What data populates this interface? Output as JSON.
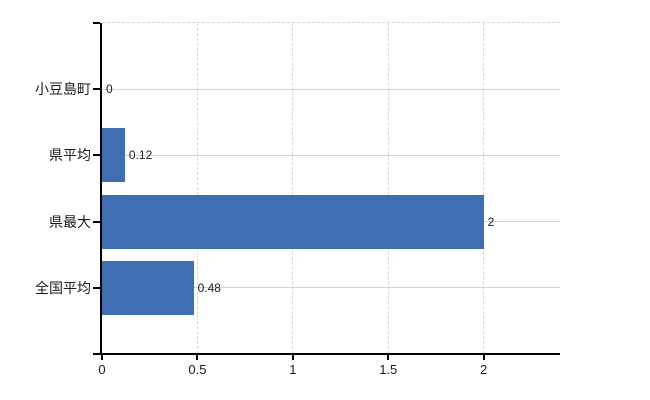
{
  "chart_data": {
    "type": "bar",
    "orientation": "horizontal",
    "title": "",
    "categories": [
      "小豆島町",
      "県平均",
      "県最大",
      "全国平均"
    ],
    "values": [
      0,
      0.12,
      2,
      0.48
    ],
    "value_labels": [
      "0",
      "0.12",
      "2",
      "0.48"
    ],
    "x_ticks": [
      0,
      0.5,
      1,
      1.5,
      2
    ],
    "x_tick_labels": [
      "0",
      "0.5",
      "1",
      "1.5",
      "2"
    ],
    "xlim": [
      0,
      2.4
    ],
    "grid": true,
    "legend": false,
    "colors": {
      "bar": "#3f6fb2",
      "horizontal_grid": "#ccd6cc",
      "vertical_grid": "#d8d8db",
      "axis": "#000000",
      "text": "#1a1a1a",
      "background": "#ffffff"
    }
  }
}
